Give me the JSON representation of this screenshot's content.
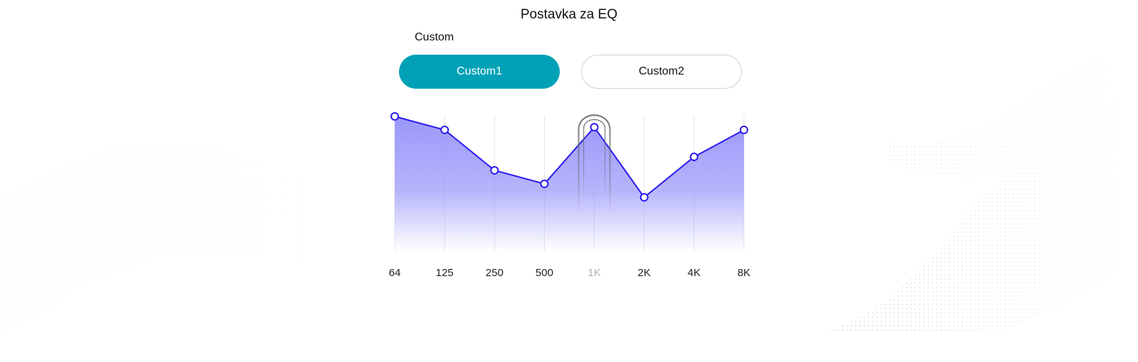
{
  "page": {
    "title": "Postavka za EQ"
  },
  "preset_section": {
    "label": "Custom",
    "buttons": [
      {
        "label": "Custom1",
        "selected": true
      },
      {
        "label": "Custom2",
        "selected": false
      }
    ]
  },
  "equalizer": {
    "bands": [
      "64",
      "125",
      "250",
      "500",
      "1K",
      "2K",
      "4K",
      "8K"
    ],
    "levels": [
      1.0,
      0.9,
      0.6,
      0.5,
      0.92,
      0.4,
      0.7,
      0.9
    ],
    "active_band": "1K",
    "colors": {
      "line": "#2a1bef",
      "fill": "#8f8cf8",
      "grid": "#e6e6ec",
      "accent": "#00a1b7"
    }
  },
  "overlay": {
    "icon": "finger-touch-icon"
  }
}
